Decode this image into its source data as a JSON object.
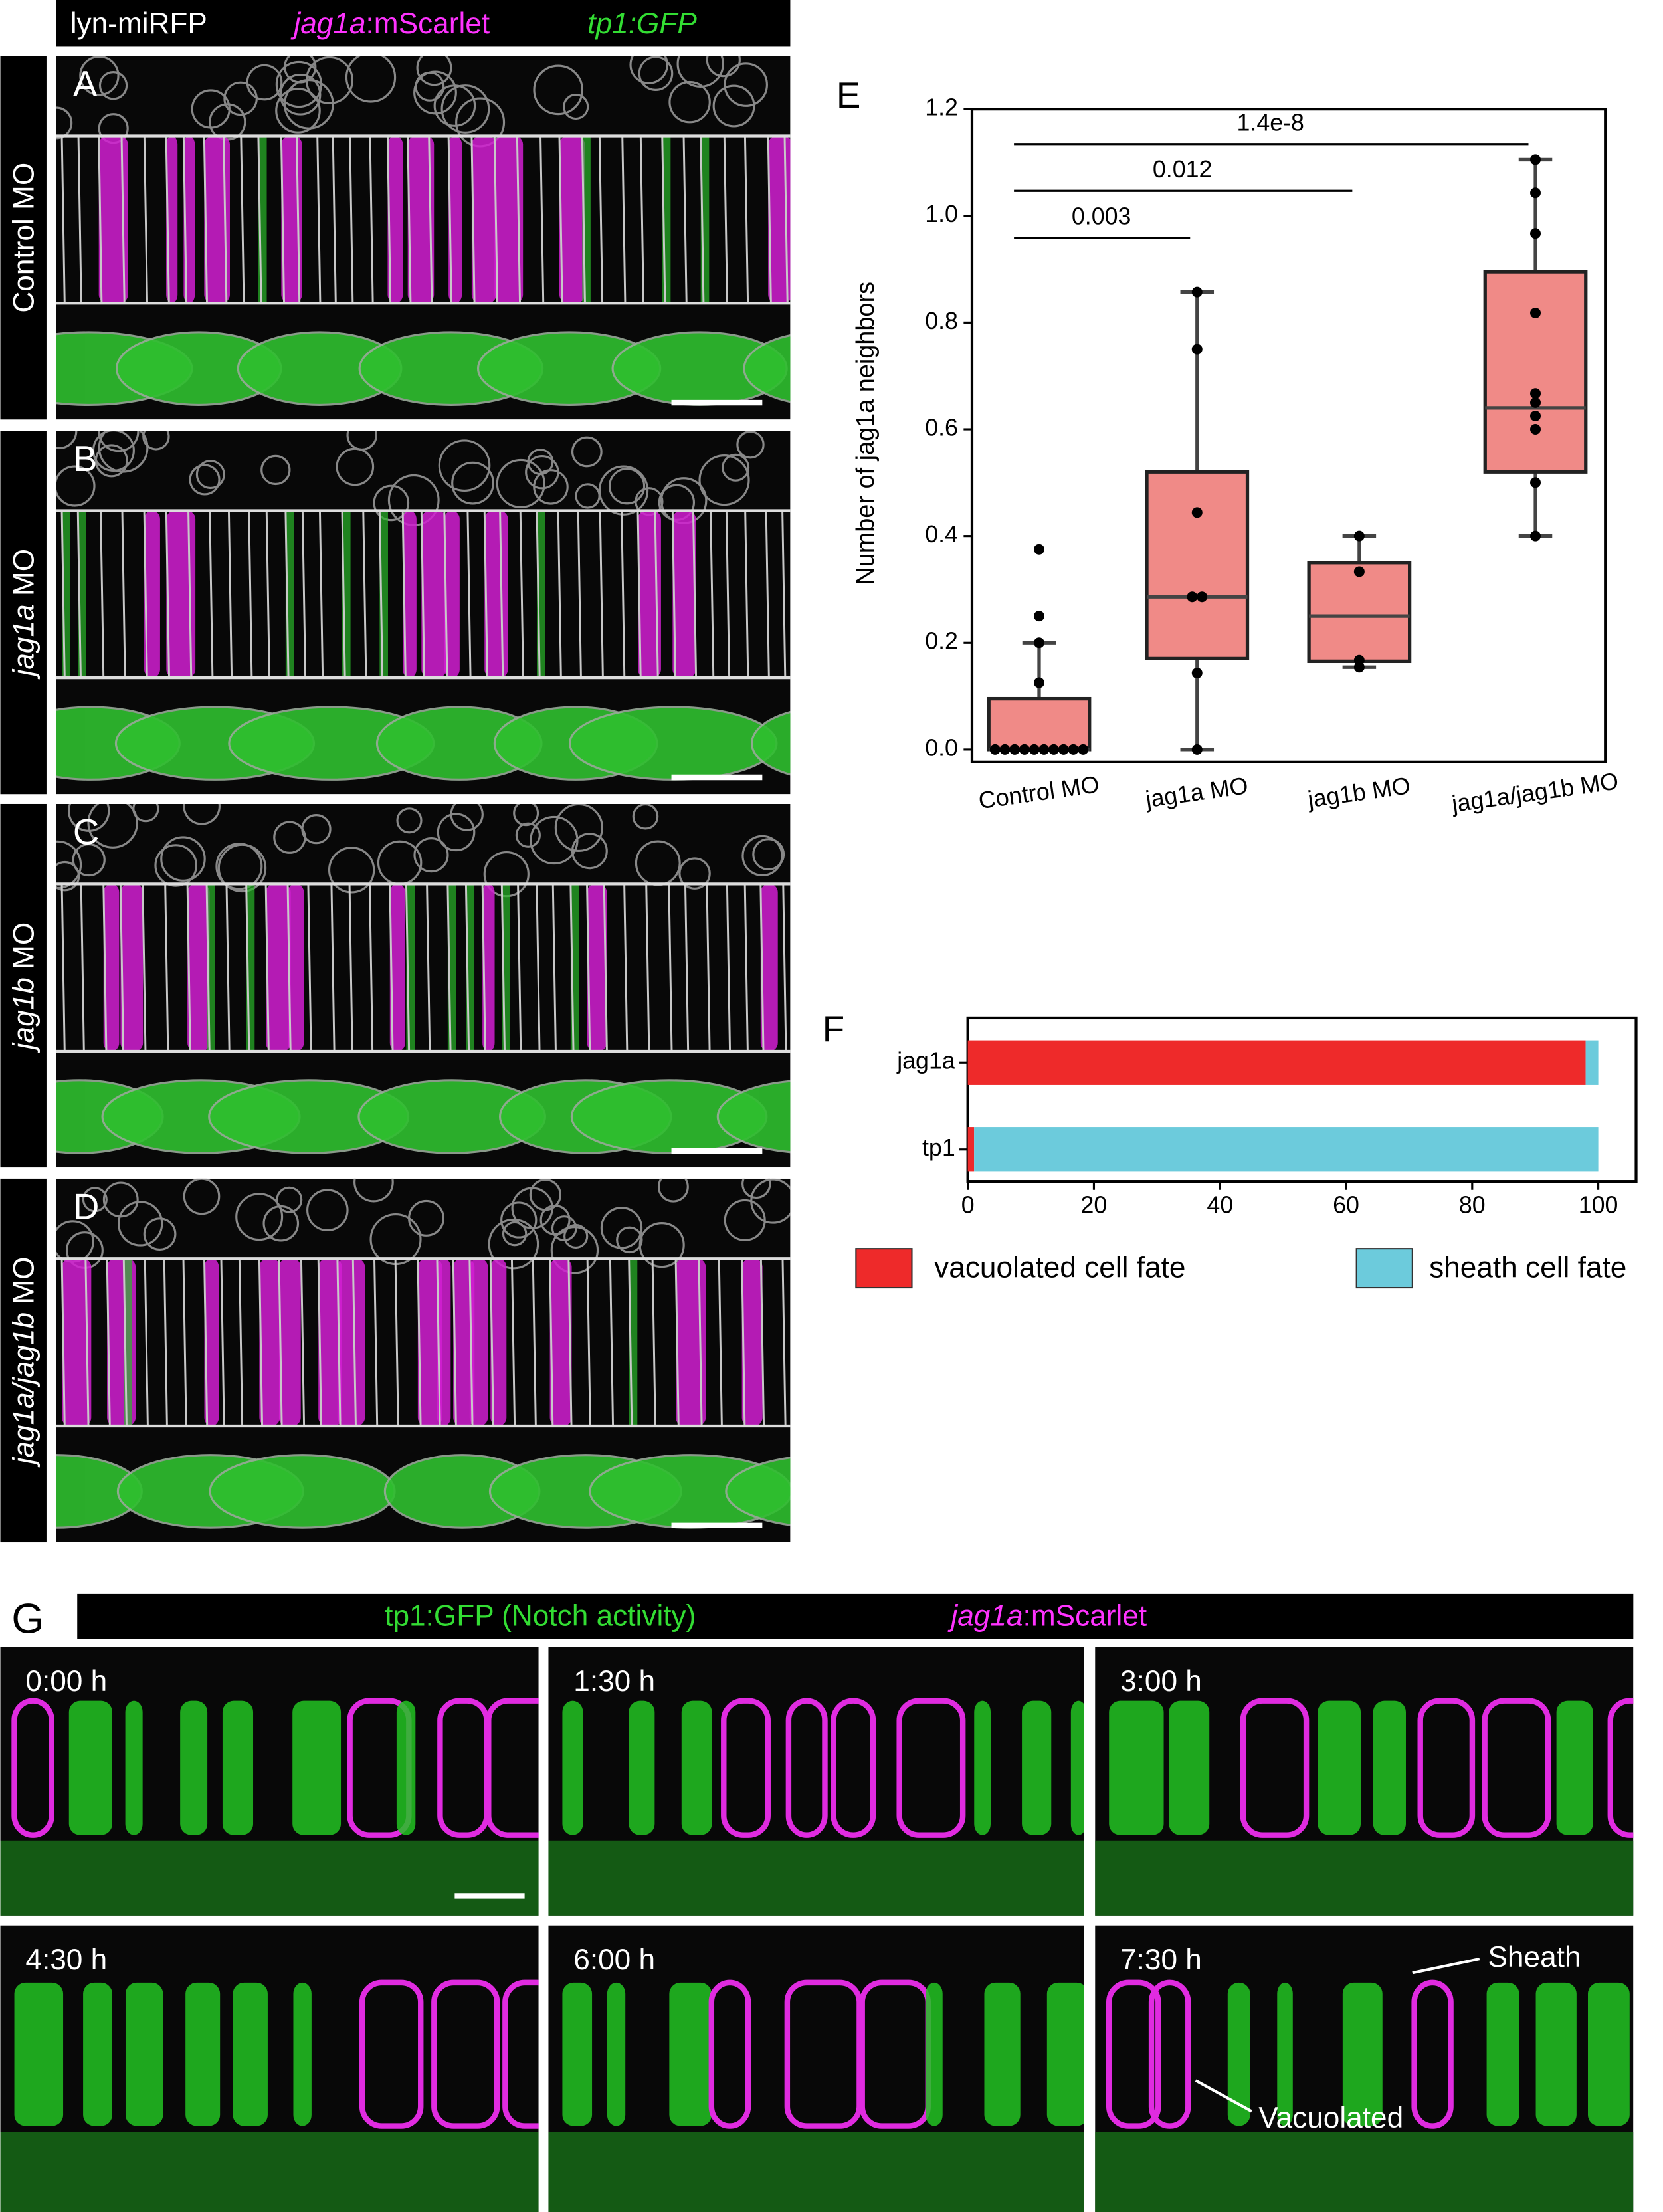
{
  "header": {
    "labels": [
      [
        {
          "text": "lyn-miRFP"
        }
      ],
      [
        {
          "text": "jag1a",
          "italic": true
        },
        {
          "text": ":mScarlet"
        }
      ],
      [
        {
          "text": "tp1:GFP",
          "italic": true
        }
      ]
    ],
    "colors": [
      "#ffffff",
      "#ff33ff",
      "#33dd33"
    ]
  },
  "panels": [
    {
      "letter": "A",
      "label": [
        {
          "text": "Control MO"
        }
      ]
    },
    {
      "letter": "B",
      "label": [
        {
          "text": "jag1a",
          "italic": true
        },
        {
          "text": " MO"
        }
      ]
    },
    {
      "letter": "C",
      "label": [
        {
          "text": "jag1b",
          "italic": true
        },
        {
          "text": " MO"
        }
      ]
    },
    {
      "letter": "D",
      "label": [
        {
          "text": "jag1a/jag1b",
          "italic": true
        },
        {
          "text": " MO"
        }
      ]
    }
  ],
  "chart_data": [
    {
      "type": "box",
      "letter": "E",
      "ylabel": "Number of jag1a neighbors",
      "categories": [
        "Control MO",
        "jag1a MO",
        "jag1b MO",
        "jag1a/jag1b MO"
      ],
      "color": "#f08a87",
      "ylim": [
        0,
        1.2
      ],
      "yticks": [
        {
          "value": 0,
          "label": "0.0"
        },
        0.2,
        0.4,
        0.6,
        0.8,
        {
          "value": 1,
          "label": "1.0"
        },
        1.2
      ],
      "boxes": [
        {
          "whislo": 0,
          "q1": 0,
          "med": 0,
          "q3": 0.095,
          "whishi": 0.2,
          "points": [
            0,
            0,
            0,
            0,
            0,
            0,
            0,
            0,
            0,
            0,
            0.125,
            0.2,
            0.25,
            0.375
          ]
        },
        {
          "whislo": 0,
          "q1": 0.17,
          "med": 0.286,
          "q3": 0.52,
          "whishi": 0.857,
          "points": [
            0,
            0.143,
            0.286,
            0.286,
            0.444,
            0.75,
            0.857
          ]
        },
        {
          "whislo": 0.154,
          "q1": 0.165,
          "med": 0.25,
          "q3": 0.35,
          "whishi": 0.4,
          "points": [
            0.154,
            0.167,
            0.333,
            0.4
          ]
        },
        {
          "whislo": 0.4,
          "q1": 0.52,
          "med": 0.64,
          "q3": 0.895,
          "whishi": 1.105,
          "points": [
            0.4,
            0.5,
            0.6,
            0.625,
            0.65,
            0.667,
            0.818,
            0.967,
            1.043,
            1.105
          ]
        }
      ],
      "annotations": [
        {
          "text": "0.003",
          "groups": [
            "Control MO",
            "jag1a MO"
          ]
        },
        {
          "text": "0.012",
          "groups": [
            "Control MO",
            "jag1b MO"
          ]
        },
        {
          "text": "1.4e-8",
          "groups": [
            "Control MO",
            "jag1a/jag1b MO"
          ]
        }
      ]
    },
    {
      "type": "barh",
      "letter": "F",
      "stacked": true,
      "categories": [
        "jag1a",
        "tp1"
      ],
      "series": [
        {
          "name": "vacuolated cell fate",
          "color": "#ee2a2a",
          "values": [
            98,
            1
          ]
        },
        {
          "name": "sheath cell fate",
          "color": "#6ccbdc",
          "values": [
            2,
            99
          ]
        }
      ],
      "xlim": [
        0,
        106
      ],
      "xticks": [
        0,
        20,
        40,
        60,
        80,
        100
      ]
    }
  ],
  "timelapse": {
    "letter": "G",
    "header": [
      [
        {
          "text": "tp1:GFP (Notch activity)"
        }
      ],
      [
        {
          "text": "jag1a",
          "italic": true
        },
        {
          "text": ":mScarlet"
        }
      ]
    ],
    "header_colors": [
      "#33dd33",
      "#ff33ff"
    ],
    "frames": [
      "0:00 h",
      "1:30 h",
      "3:00 h",
      "4:30 h",
      "6:00 h",
      "7:30 h"
    ],
    "annotations": [
      "Sheath",
      "Vacuolated"
    ]
  }
}
